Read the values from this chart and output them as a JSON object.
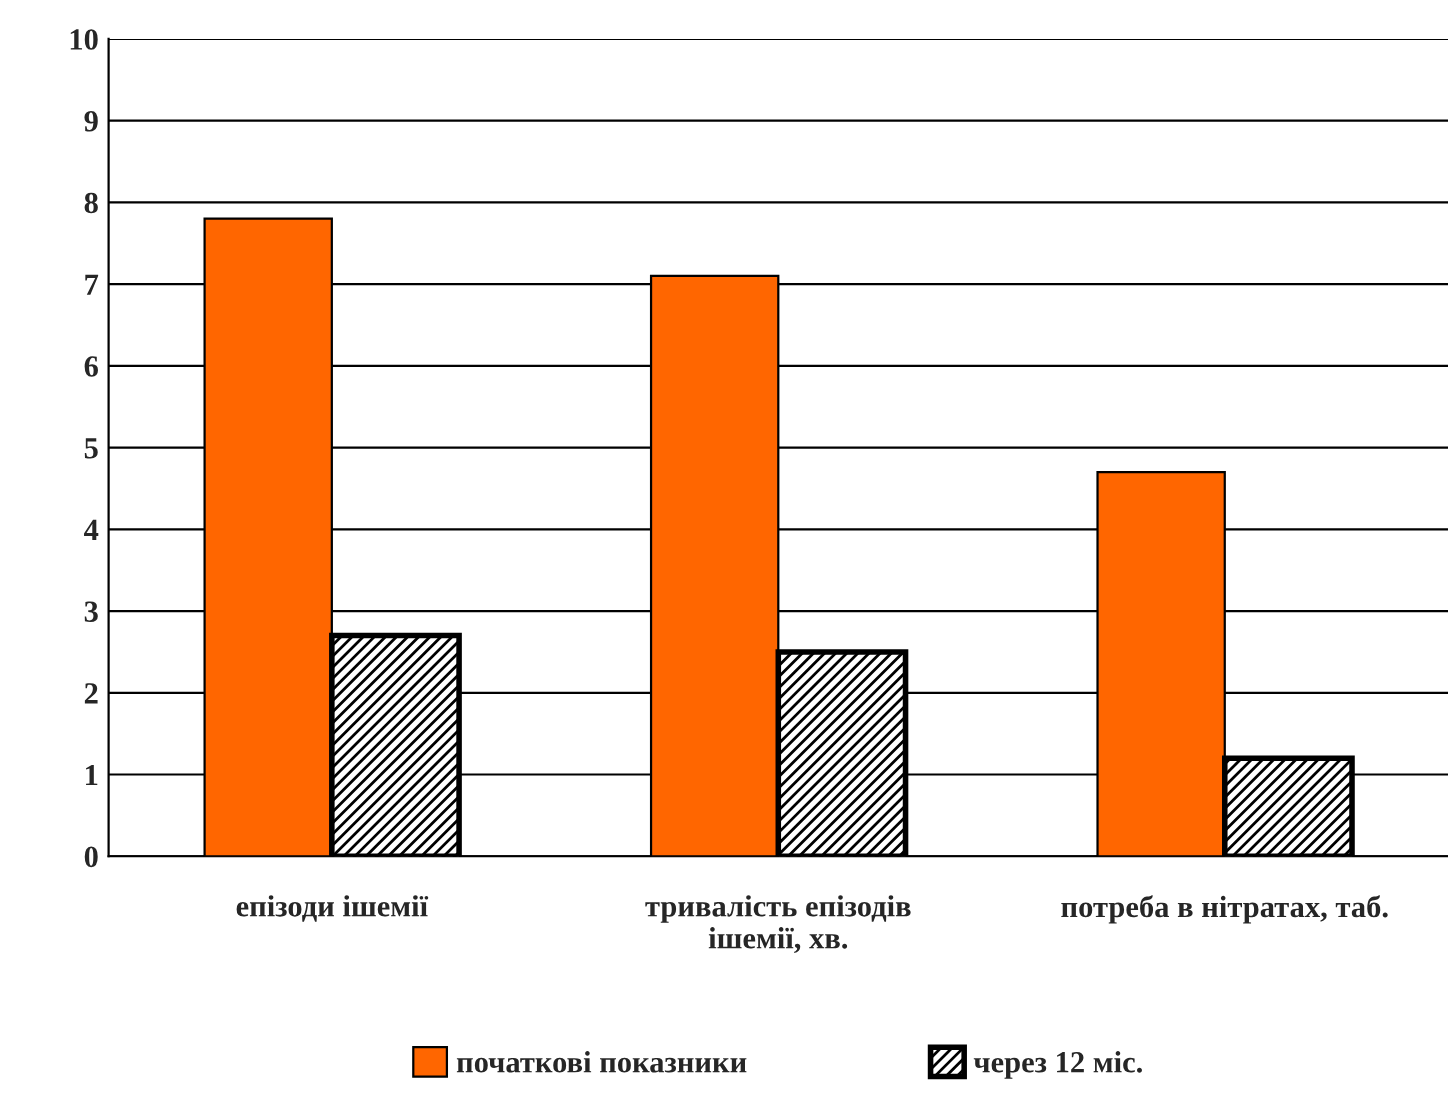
{
  "chart_data": {
    "type": "bar",
    "categories": [
      "епізоди ішемії",
      "тривалість епізодів\nішемії, хв.",
      "потреба в нітратах, таб."
    ],
    "series": [
      {
        "name": "початкові показники",
        "color": "#ff6600",
        "values": [
          7.8,
          7.1,
          4.7
        ]
      },
      {
        "name": "через 12 міс.",
        "color": "#000000",
        "values": [
          2.7,
          2.5,
          1.2
        ]
      }
    ],
    "ylim": [
      0,
      10
    ],
    "yticks": [
      0,
      1,
      2,
      3,
      4,
      5,
      6,
      7,
      8,
      9,
      10
    ],
    "grid": "y",
    "legend": "bottom"
  }
}
